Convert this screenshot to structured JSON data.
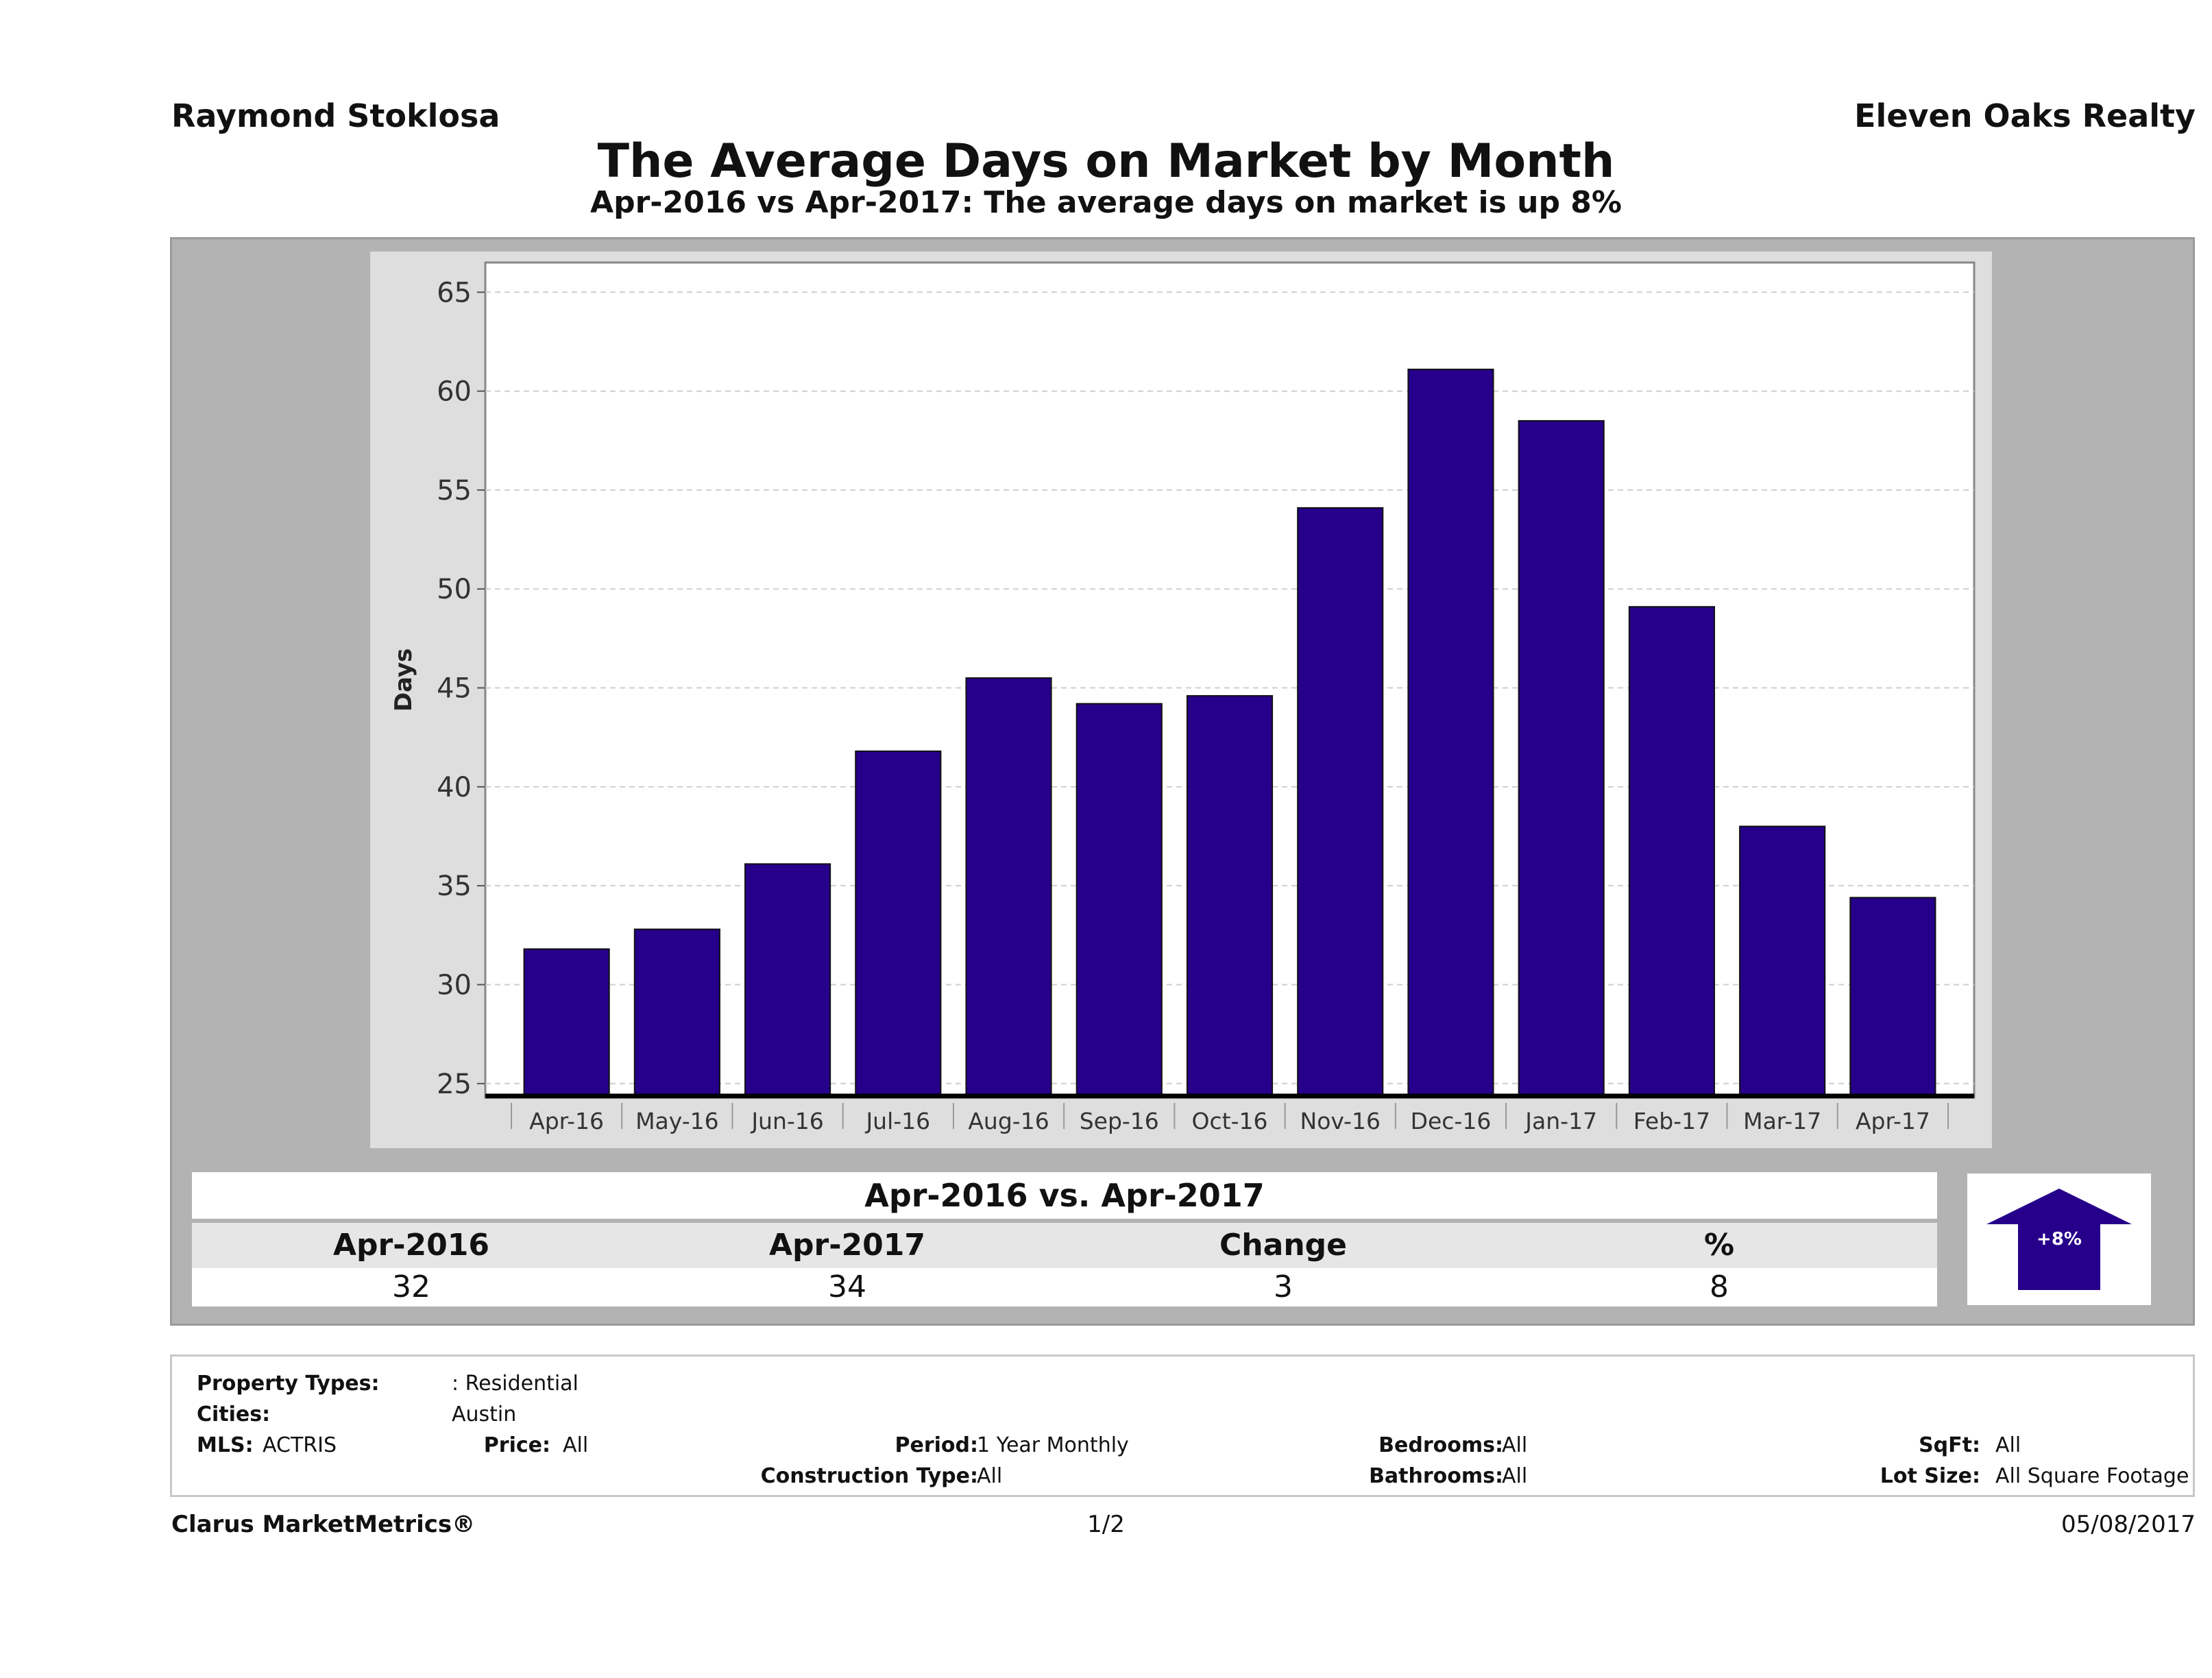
{
  "header": {
    "agent": "Raymond Stoklosa",
    "company": "Eleven Oaks Realty",
    "title": "The Average Days on Market by Month",
    "subtitle": "Apr-2016 vs Apr-2017: The average days on market is up 8%"
  },
  "chart_data": {
    "type": "bar",
    "categories": [
      "Apr-16",
      "May-16",
      "Jun-16",
      "Jul-16",
      "Aug-16",
      "Sep-16",
      "Oct-16",
      "Nov-16",
      "Dec-16",
      "Jan-17",
      "Feb-17",
      "Mar-17",
      "Apr-17"
    ],
    "values": [
      31.8,
      32.8,
      36.1,
      41.8,
      45.5,
      44.2,
      44.6,
      54.1,
      61.1,
      58.5,
      49.1,
      38.0,
      34.4
    ],
    "ylabel": "Days",
    "xlabel": "",
    "ylim": [
      24.3,
      66.5
    ],
    "yticks": [
      25,
      30,
      35,
      40,
      45,
      50,
      55,
      60,
      65
    ],
    "bar_color": "#26008a",
    "grid": true
  },
  "summary": {
    "title": "Apr-2016 vs. Apr-2017",
    "headers": [
      "Apr-2016",
      "Apr-2017",
      "Change",
      "%"
    ],
    "values": [
      "32",
      "34",
      "3",
      "8"
    ],
    "badge": "+8%",
    "badge_color": "#26008a"
  },
  "criteria": {
    "property_types_label": "Property Types:",
    "property_types_value": ": Residential",
    "cities_label": "Cities:",
    "cities_value": "Austin",
    "mls_label": "MLS:",
    "mls_value": "ACTRIS",
    "price_label": "Price:",
    "price_value": "All",
    "period_label": "Period:",
    "period_value": "1 Year Monthly",
    "construction_label": "Construction Type:",
    "construction_value": "All",
    "bedrooms_label": "Bedrooms:",
    "bedrooms_value": "All",
    "bathrooms_label": "Bathrooms:",
    "bathrooms_value": "All",
    "sqft_label": "SqFt:",
    "sqft_value": "All",
    "lot_label": "Lot Size:",
    "lot_value": "All Square Footage"
  },
  "footer": {
    "brand": "Clarus MarketMetrics®",
    "page": "1/2",
    "date": "05/08/2017"
  }
}
